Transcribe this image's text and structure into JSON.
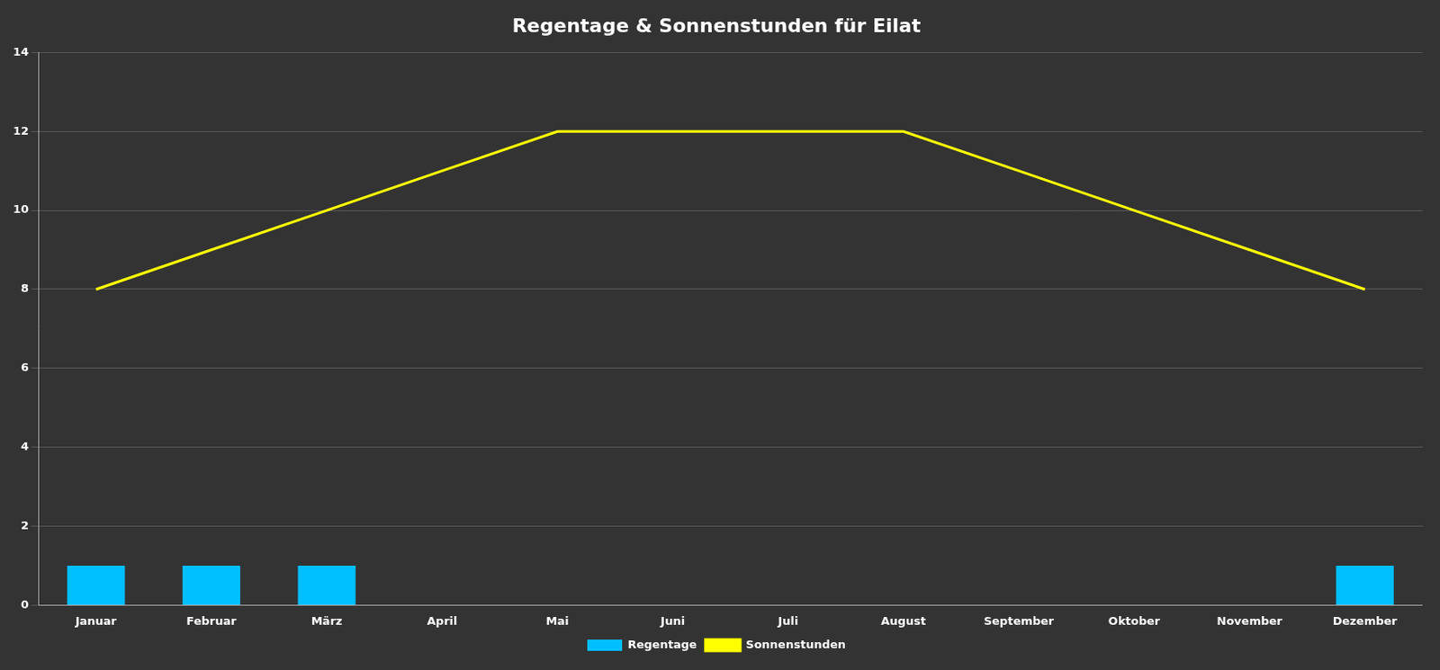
{
  "chart_data": {
    "type": "bar",
    "title": "Regentage & Sonnenstunden für Eilat",
    "categories": [
      "Januar",
      "Februar",
      "März",
      "April",
      "Mai",
      "Juni",
      "Juli",
      "August",
      "September",
      "Oktober",
      "November",
      "Dezember"
    ],
    "series": [
      {
        "name": "Regentage",
        "type": "bar",
        "color": "#00BFFF",
        "values": [
          1,
          1,
          1,
          0,
          0,
          0,
          0,
          0,
          0,
          0,
          0,
          1
        ]
      },
      {
        "name": "Sonnenstunden",
        "type": "line",
        "color": "#FFFF00",
        "values": [
          8,
          9,
          10,
          11,
          12,
          12,
          12,
          12,
          11,
          10,
          9,
          8
        ]
      }
    ],
    "ylim": [
      0,
      14
    ],
    "yticks": [
      0,
      2,
      4,
      6,
      8,
      10,
      12,
      14
    ],
    "grid": true,
    "legend": "bottom"
  }
}
